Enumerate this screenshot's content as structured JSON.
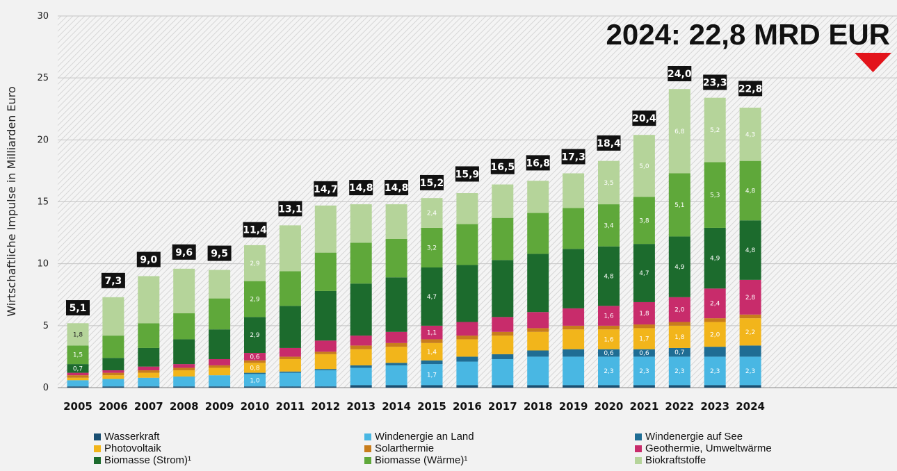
{
  "headline": "2024: 22,8 MRD EUR",
  "chart_data": {
    "type": "bar",
    "stacked": true,
    "ylabel": "Wirtschaftliche Impulse in Milliarden Euro",
    "xlabel": "",
    "ylim": [
      0,
      30
    ],
    "yticks": [
      "0",
      "5",
      "10",
      "15",
      "20",
      "25",
      "30"
    ],
    "grid": true,
    "categories": [
      "2005",
      "2006",
      "2007",
      "2008",
      "2009",
      "2010",
      "2011",
      "2012",
      "2013",
      "2014",
      "2015",
      "2016",
      "2017",
      "2018",
      "2019",
      "2020",
      "2021",
      "2022",
      "2023",
      "2024"
    ],
    "totals": [
      5.1,
      7.3,
      9.0,
      9.6,
      9.5,
      11.4,
      13.1,
      14.7,
      14.8,
      14.8,
      15.2,
      15.9,
      16.5,
      16.8,
      17.3,
      18.4,
      20.4,
      24.0,
      23.3,
      22.8
    ],
    "total_labels": [
      "5,1",
      "7,3",
      "9,0",
      "9,6",
      "9,5",
      "11,4",
      "13,1",
      "14,7",
      "14,8",
      "14,8",
      "15,2",
      "15,9",
      "16,5",
      "16,8",
      "17,3",
      "18,4",
      "20,4",
      "24,0",
      "23,3",
      "22,8"
    ],
    "series": [
      {
        "name": "Wasserkraft",
        "color": "#1a4f72",
        "values": [
          0.1,
          0.1,
          0.1,
          0.1,
          0.1,
          0.1,
          0.1,
          0.1,
          0.2,
          0.2,
          0.2,
          0.2,
          0.2,
          0.2,
          0.2,
          0.2,
          0.2,
          0.2,
          0.2,
          0.2
        ]
      },
      {
        "name": "Windenergie an Land",
        "color": "#49b7e3",
        "values": [
          0.5,
          0.6,
          0.7,
          0.8,
          0.9,
          1.0,
          1.1,
          1.3,
          1.4,
          1.6,
          1.7,
          1.9,
          2.1,
          2.3,
          2.3,
          2.3,
          2.3,
          2.3,
          2.3,
          2.3
        ],
        "labels": [
          "",
          "",
          "",
          "",
          "",
          "1,0",
          "",
          "",
          "",
          "",
          "1,7",
          "",
          "",
          "",
          "",
          "2,3",
          "2,3",
          "2,3",
          "2,3",
          "2,3"
        ]
      },
      {
        "name": "Windenergie auf See",
        "color": "#1f6d94",
        "values": [
          0,
          0,
          0,
          0,
          0,
          0.1,
          0.1,
          0.1,
          0.2,
          0.2,
          0.3,
          0.4,
          0.4,
          0.5,
          0.6,
          0.6,
          0.6,
          0.7,
          0.8,
          0.9
        ],
        "labels": [
          "",
          "",
          "",
          "",
          "",
          "",
          "",
          "",
          "",
          "",
          "",
          "",
          "",
          "",
          "",
          "0,6",
          "0,6",
          "0,7",
          "",
          ""
        ]
      },
      {
        "name": "Photovoltaik",
        "color": "#f2b51b",
        "values": [
          0.2,
          0.3,
          0.4,
          0.5,
          0.6,
          0.8,
          1.0,
          1.2,
          1.3,
          1.3,
          1.4,
          1.4,
          1.5,
          1.5,
          1.6,
          1.6,
          1.7,
          1.8,
          2.0,
          2.2
        ],
        "labels": [
          "",
          "",
          "",
          "",
          "",
          "0,8",
          "",
          "",
          "",
          "",
          "1,4",
          "",
          "",
          "",
          "",
          "1,6",
          "1,7",
          "1,8",
          "2,0",
          "2,2"
        ]
      },
      {
        "name": "Solarthermie",
        "color": "#c87d1c",
        "values": [
          0.2,
          0.2,
          0.2,
          0.2,
          0.2,
          0.2,
          0.2,
          0.2,
          0.3,
          0.3,
          0.3,
          0.3,
          0.3,
          0.3,
          0.3,
          0.3,
          0.3,
          0.3,
          0.3,
          0.3
        ]
      },
      {
        "name": "Geothermie, Umweltwärme",
        "color": "#c82c6b",
        "values": [
          0.2,
          0.2,
          0.3,
          0.3,
          0.5,
          0.6,
          0.7,
          0.9,
          0.8,
          0.9,
          1.1,
          1.1,
          1.2,
          1.3,
          1.4,
          1.6,
          1.8,
          2.0,
          2.4,
          2.8
        ],
        "labels": [
          "",
          "",
          "",
          "",
          "",
          "0,6",
          "",
          "",
          "",
          "",
          "1,1",
          "",
          "",
          "",
          "",
          "1,6",
          "1,8",
          "2,0",
          "2,4",
          "2,8"
        ]
      },
      {
        "name": "Biomasse (Strom)¹",
        "color": "#1c6b2d",
        "values": [
          0.7,
          1.0,
          1.5,
          2.0,
          2.4,
          2.9,
          3.4,
          4.0,
          4.2,
          4.4,
          4.7,
          4.6,
          4.6,
          4.7,
          4.8,
          4.8,
          4.7,
          4.9,
          4.9,
          4.8
        ],
        "labels": [
          "0,7",
          "",
          "",
          "",
          "",
          "2,9",
          "",
          "",
          "",
          "",
          "4,7",
          "",
          "",
          "",
          "",
          "4,8",
          "4,7",
          "4,9",
          "4,9",
          "4,8"
        ]
      },
      {
        "name": "Biomasse (Wärme)¹",
        "color": "#5fa83a",
        "values": [
          1.5,
          1.8,
          2.0,
          2.1,
          2.5,
          2.9,
          2.8,
          3.1,
          3.3,
          3.1,
          3.2,
          3.3,
          3.4,
          3.3,
          3.3,
          3.4,
          3.8,
          5.1,
          5.3,
          4.8
        ],
        "labels": [
          "1,5",
          "",
          "",
          "",
          "",
          "2,9",
          "",
          "",
          "",
          "",
          "3,2",
          "",
          "",
          "",
          "",
          "3,4",
          "3,8",
          "5,1",
          "5,3",
          "4,8"
        ]
      },
      {
        "name": "Biokraftstoffe",
        "color": "#b5d49a",
        "values": [
          1.8,
          3.1,
          3.8,
          3.6,
          2.3,
          2.9,
          3.7,
          3.8,
          3.1,
          2.8,
          2.4,
          2.5,
          2.7,
          2.6,
          2.8,
          3.5,
          5.0,
          6.8,
          5.2,
          4.3
        ],
        "labels": [
          "1,8",
          "",
          "",
          "",
          "",
          "2,9",
          "",
          "",
          "",
          "",
          "2,4",
          "",
          "",
          "",
          "",
          "3,5",
          "5,0",
          "6,8",
          "5,2",
          "4,3"
        ]
      }
    ],
    "legend_position": "bottom"
  }
}
